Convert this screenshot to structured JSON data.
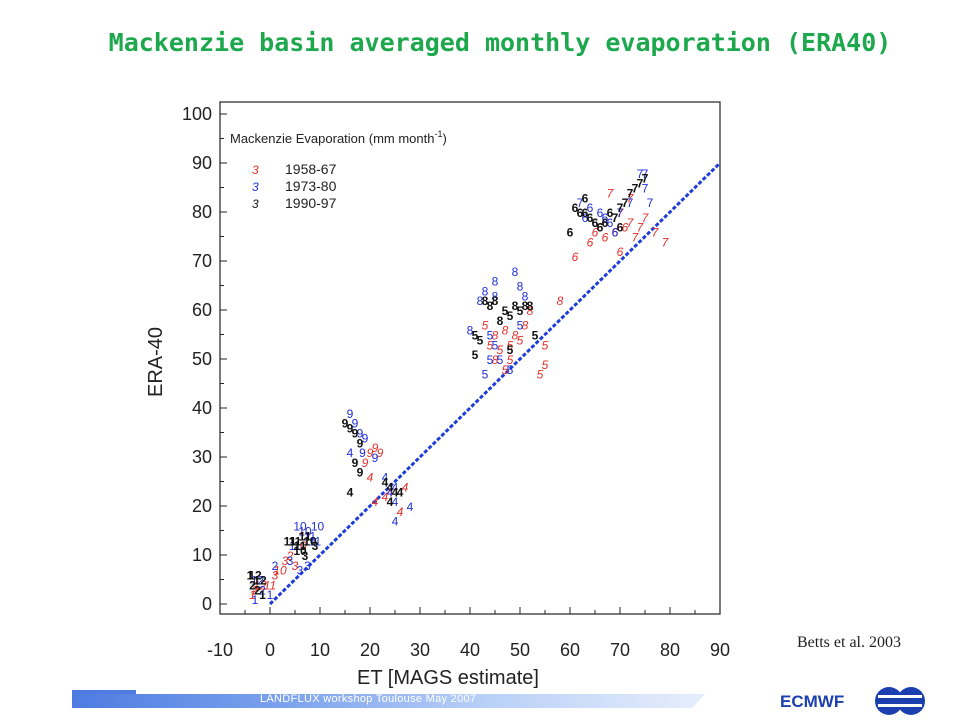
{
  "title": "Mackenzie basin averaged monthly evaporation (ERA40)",
  "citation": "Betts et al. 2003",
  "footer": {
    "text": "LANDFLUX workshop Toulouse May 2007",
    "org": "ECMWF"
  },
  "colors": {
    "title": "#1ea84e",
    "s1958": "#e5302a",
    "s1973": "#1f2ed9",
    "s1990": "#111111",
    "line": "#1f3ed9"
  },
  "chart_data": {
    "type": "scatter",
    "title": "",
    "inner_title": "Mackenzie Evaporation (mm month",
    "inner_title_sup": "-1",
    "inner_title_close": ")",
    "xlabel": "ET  [MAGS estimate]",
    "ylabel": "ERA-40",
    "xlim": [
      -10,
      90
    ],
    "ylim": [
      -2,
      100
    ],
    "xticks": [
      -10,
      0,
      10,
      20,
      30,
      40,
      50,
      60,
      70,
      80,
      90
    ],
    "yticks": [
      0,
      10,
      20,
      30,
      40,
      50,
      60,
      70,
      80,
      90,
      100
    ],
    "marker_note": "points are drawn as the month number (1-12)",
    "legend": [
      {
        "marker": "3",
        "label": "1958-67",
        "color": "#e5302a"
      },
      {
        "marker": "3",
        "label": "1973-80",
        "color": "#1f2ed9"
      },
      {
        "marker": "3",
        "label": "1990-97",
        "color": "#111111"
      }
    ],
    "line": {
      "x": [
        0,
        90
      ],
      "y": [
        0,
        90
      ],
      "style": "dashed"
    },
    "series": [
      {
        "name": "1958-67",
        "color": "#e5302a",
        "points": [
          [
            -3.5,
            2,
            "1"
          ],
          [
            -3,
            3,
            "2"
          ],
          [
            -2,
            4,
            "12"
          ],
          [
            0,
            4,
            "11"
          ],
          [
            1,
            6,
            "3"
          ],
          [
            2,
            7,
            "10"
          ],
          [
            3,
            9,
            "3"
          ],
          [
            4,
            10,
            "2"
          ],
          [
            6,
            12,
            "10"
          ],
          [
            7,
            14,
            "11"
          ],
          [
            5,
            8,
            "3"
          ],
          [
            20,
            31,
            "9"
          ],
          [
            21,
            32,
            "9"
          ],
          [
            22,
            31,
            "9"
          ],
          [
            20,
            26,
            "4"
          ],
          [
            21,
            21,
            "4"
          ],
          [
            24,
            23,
            "4"
          ],
          [
            26,
            19,
            "4"
          ],
          [
            27,
            24,
            "4"
          ],
          [
            23,
            22,
            "4"
          ],
          [
            19,
            29,
            "9"
          ],
          [
            43,
            57,
            "5"
          ],
          [
            44,
            53,
            "5"
          ],
          [
            45,
            55,
            "8"
          ],
          [
            46,
            52,
            "5"
          ],
          [
            47,
            56,
            "8"
          ],
          [
            48,
            53,
            "5"
          ],
          [
            49,
            55,
            "8"
          ],
          [
            50,
            54,
            "5"
          ],
          [
            51,
            57,
            "8"
          ],
          [
            52,
            60,
            "8"
          ],
          [
            55,
            53,
            "5"
          ],
          [
            54,
            47,
            "5"
          ],
          [
            55,
            49,
            "5"
          ],
          [
            45,
            50,
            "8"
          ],
          [
            58,
            62,
            "8"
          ],
          [
            48,
            50,
            "5"
          ],
          [
            47,
            48,
            "5"
          ],
          [
            61,
            71,
            "6"
          ],
          [
            64,
            74,
            "6"
          ],
          [
            65,
            76,
            "6"
          ],
          [
            66,
            77,
            "6"
          ],
          [
            67,
            75,
            "6"
          ],
          [
            69,
            76,
            "6"
          ],
          [
            70,
            72,
            "6"
          ],
          [
            71,
            77,
            "6"
          ],
          [
            72,
            78,
            "7"
          ],
          [
            73,
            75,
            "7"
          ],
          [
            74,
            77,
            "7"
          ],
          [
            75,
            79,
            "7"
          ],
          [
            77,
            76,
            "7"
          ],
          [
            79,
            74,
            "7"
          ],
          [
            72,
            83,
            "7"
          ],
          [
            68,
            84,
            "7"
          ],
          [
            70,
            80,
            "7"
          ]
        ]
      },
      {
        "name": "1973-80",
        "color": "#1f2ed9",
        "points": [
          [
            -3,
            1,
            "1"
          ],
          [
            -2.5,
            5,
            "12"
          ],
          [
            -1.5,
            3,
            "2"
          ],
          [
            0,
            2,
            "1"
          ],
          [
            1,
            8,
            "2"
          ],
          [
            4,
            9,
            "3"
          ],
          [
            5,
            12,
            "11"
          ],
          [
            6,
            16,
            "10"
          ],
          [
            7,
            15,
            "10"
          ],
          [
            8,
            14,
            "11"
          ],
          [
            9,
            13,
            "11"
          ],
          [
            9.5,
            16,
            "10"
          ],
          [
            6,
            7,
            "3"
          ],
          [
            7.5,
            8,
            "3"
          ],
          [
            16,
            39,
            "9"
          ],
          [
            17,
            37,
            "9"
          ],
          [
            18,
            35,
            "9"
          ],
          [
            19,
            34,
            "9"
          ],
          [
            18.5,
            31,
            "9"
          ],
          [
            16,
            31,
            "4"
          ],
          [
            21,
            30,
            "9"
          ],
          [
            23,
            26,
            "4"
          ],
          [
            24,
            23,
            "4"
          ],
          [
            25,
            21,
            "4"
          ],
          [
            25,
            17,
            "4"
          ],
          [
            28,
            20,
            "4"
          ],
          [
            25,
            24,
            "4"
          ],
          [
            40,
            56,
            "8"
          ],
          [
            42,
            62,
            "8"
          ],
          [
            43,
            64,
            "8"
          ],
          [
            45,
            63,
            "8"
          ],
          [
            45,
            66,
            "8"
          ],
          [
            49,
            68,
            "8"
          ],
          [
            50,
            65,
            "8"
          ],
          [
            51,
            63,
            "8"
          ],
          [
            44,
            55,
            "5"
          ],
          [
            45,
            53,
            "5"
          ],
          [
            43,
            47,
            "5"
          ],
          [
            46,
            50,
            "5"
          ],
          [
            48,
            48,
            "5"
          ],
          [
            50,
            57,
            "5"
          ],
          [
            44,
            50,
            "5"
          ],
          [
            62,
            82,
            "7"
          ],
          [
            63,
            79,
            "6"
          ],
          [
            64,
            81,
            "6"
          ],
          [
            65,
            78,
            "6"
          ],
          [
            66,
            80,
            "6"
          ],
          [
            68,
            78,
            "6"
          ],
          [
            70,
            80,
            "7"
          ],
          [
            69,
            76,
            "6"
          ],
          [
            72,
            82,
            "7"
          ],
          [
            74,
            88,
            "7"
          ],
          [
            75,
            88,
            "7"
          ],
          [
            75,
            85,
            "7"
          ],
          [
            76,
            82,
            "7"
          ],
          [
            67,
            79,
            "6"
          ]
        ]
      },
      {
        "name": "1990-97",
        "color": "#111111",
        "points": [
          [
            -4,
            6,
            "1"
          ],
          [
            -3,
            6,
            "12"
          ],
          [
            -2.5,
            3,
            "2"
          ],
          [
            -1.5,
            2,
            "1"
          ],
          [
            -2,
            5,
            "12"
          ],
          [
            -3.5,
            4,
            "2"
          ],
          [
            5,
            13,
            "11"
          ],
          [
            6,
            12,
            "11"
          ],
          [
            7,
            14,
            "11"
          ],
          [
            8,
            13,
            "10"
          ],
          [
            7,
            10,
            "3"
          ],
          [
            6,
            11,
            "10"
          ],
          [
            9,
            12,
            "3"
          ],
          [
            4,
            13,
            "11"
          ],
          [
            15,
            37,
            "9"
          ],
          [
            16,
            36,
            "9"
          ],
          [
            17,
            35,
            "9"
          ],
          [
            18,
            33,
            "9"
          ],
          [
            17,
            29,
            "9"
          ],
          [
            16,
            23,
            "4"
          ],
          [
            18,
            27,
            "9"
          ],
          [
            23,
            25,
            "4"
          ],
          [
            24,
            24,
            "4"
          ],
          [
            25,
            23,
            "4"
          ],
          [
            26,
            23,
            "4"
          ],
          [
            24,
            21,
            "4"
          ],
          [
            41,
            51,
            "5"
          ],
          [
            42,
            54,
            "5"
          ],
          [
            43,
            62,
            "8"
          ],
          [
            44,
            61,
            "8"
          ],
          [
            45,
            62,
            "8"
          ],
          [
            46,
            58,
            "8"
          ],
          [
            47,
            60,
            "5"
          ],
          [
            48,
            59,
            "5"
          ],
          [
            49,
            61,
            "8"
          ],
          [
            50,
            60,
            "5"
          ],
          [
            51,
            61,
            "8"
          ],
          [
            52,
            61,
            "8"
          ],
          [
            53,
            55,
            "5"
          ],
          [
            41,
            55,
            "5"
          ],
          [
            48,
            52,
            "5"
          ],
          [
            60,
            76,
            "6"
          ],
          [
            61,
            81,
            "6"
          ],
          [
            62,
            80,
            "6"
          ],
          [
            63,
            80,
            "6"
          ],
          [
            64,
            79,
            "6"
          ],
          [
            65,
            78,
            "6"
          ],
          [
            66,
            77,
            "6"
          ],
          [
            67,
            78,
            "6"
          ],
          [
            68,
            80,
            "6"
          ],
          [
            69,
            79,
            "7"
          ],
          [
            70,
            81,
            "7"
          ],
          [
            71,
            82,
            "7"
          ],
          [
            72,
            84,
            "7"
          ],
          [
            73,
            85,
            "7"
          ],
          [
            74,
            86,
            "7"
          ],
          [
            75,
            87,
            "7"
          ],
          [
            70,
            77,
            "6"
          ],
          [
            63,
            83,
            "6"
          ]
        ]
      }
    ]
  }
}
